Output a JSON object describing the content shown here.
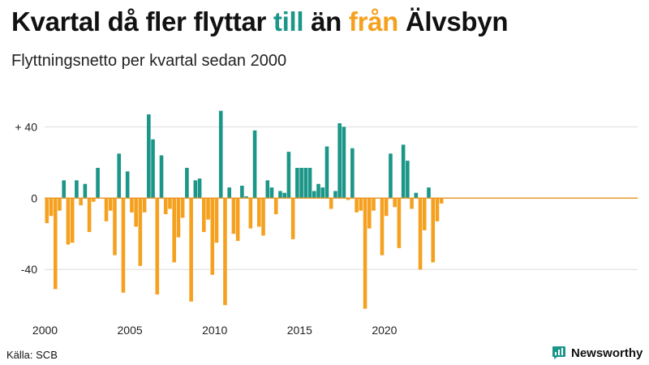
{
  "header": {
    "title_part1": "Kvartal då fler flyttar ",
    "title_till": "till",
    "title_part2": " än ",
    "title_fran": "från",
    "title_part3": " Älvsbyn",
    "subtitle": "Flyttningsnetto per kvartal sedan 2000"
  },
  "footer": {
    "source": "Källa: SCB",
    "brand": "Newsworthy"
  },
  "colors": {
    "positive": "#1b9688",
    "negative": "#f5a11f",
    "zero_line": "#e79a2e",
    "grid": "#dddddd"
  },
  "chart_data": {
    "type": "bar",
    "title": "Kvartal då fler flyttar till än från Älvsbyn",
    "subtitle": "Flyttningsnetto per kvartal sedan 2000",
    "xlabel": "",
    "ylabel": "",
    "ylim": [
      -64,
      52
    ],
    "start_year": 2000,
    "quarters_per_year": 4,
    "y_ticks": [
      {
        "value": 40,
        "label": "+ 40"
      },
      {
        "value": 0,
        "label": "0"
      },
      {
        "value": -40,
        "label": "-40"
      }
    ],
    "x_ticks": [
      {
        "value": 2000,
        "label": "2000"
      },
      {
        "value": 2005,
        "label": "2005"
      },
      {
        "value": 2010,
        "label": "2010"
      },
      {
        "value": 2015,
        "label": "2015"
      },
      {
        "value": 2020,
        "label": "2020"
      }
    ],
    "values": [
      -14,
      -10,
      -51,
      -7,
      10,
      -26,
      -25,
      10,
      -4,
      8,
      -19,
      -2,
      17,
      0,
      -13,
      -7,
      -32,
      25,
      -53,
      15,
      -8,
      -16,
      -38,
      -8,
      47,
      33,
      -54,
      24,
      -9,
      -6,
      -36,
      -22,
      -11,
      17,
      -58,
      10,
      11,
      -19,
      -12,
      -43,
      -25,
      49,
      -60,
      6,
      -20,
      -24,
      7,
      1,
      -17,
      38,
      -16,
      -21,
      10,
      6,
      -9,
      4,
      3,
      26,
      -23,
      17,
      17,
      17,
      17,
      4,
      8,
      6,
      29,
      -6,
      4,
      42,
      40,
      -1,
      28,
      -8,
      -7,
      -62,
      -17,
      -7,
      0,
      -32,
      -10,
      25,
      -5,
      -28,
      30,
      21,
      -6,
      3,
      -40,
      -18,
      6,
      -36,
      -13,
      -3
    ]
  }
}
